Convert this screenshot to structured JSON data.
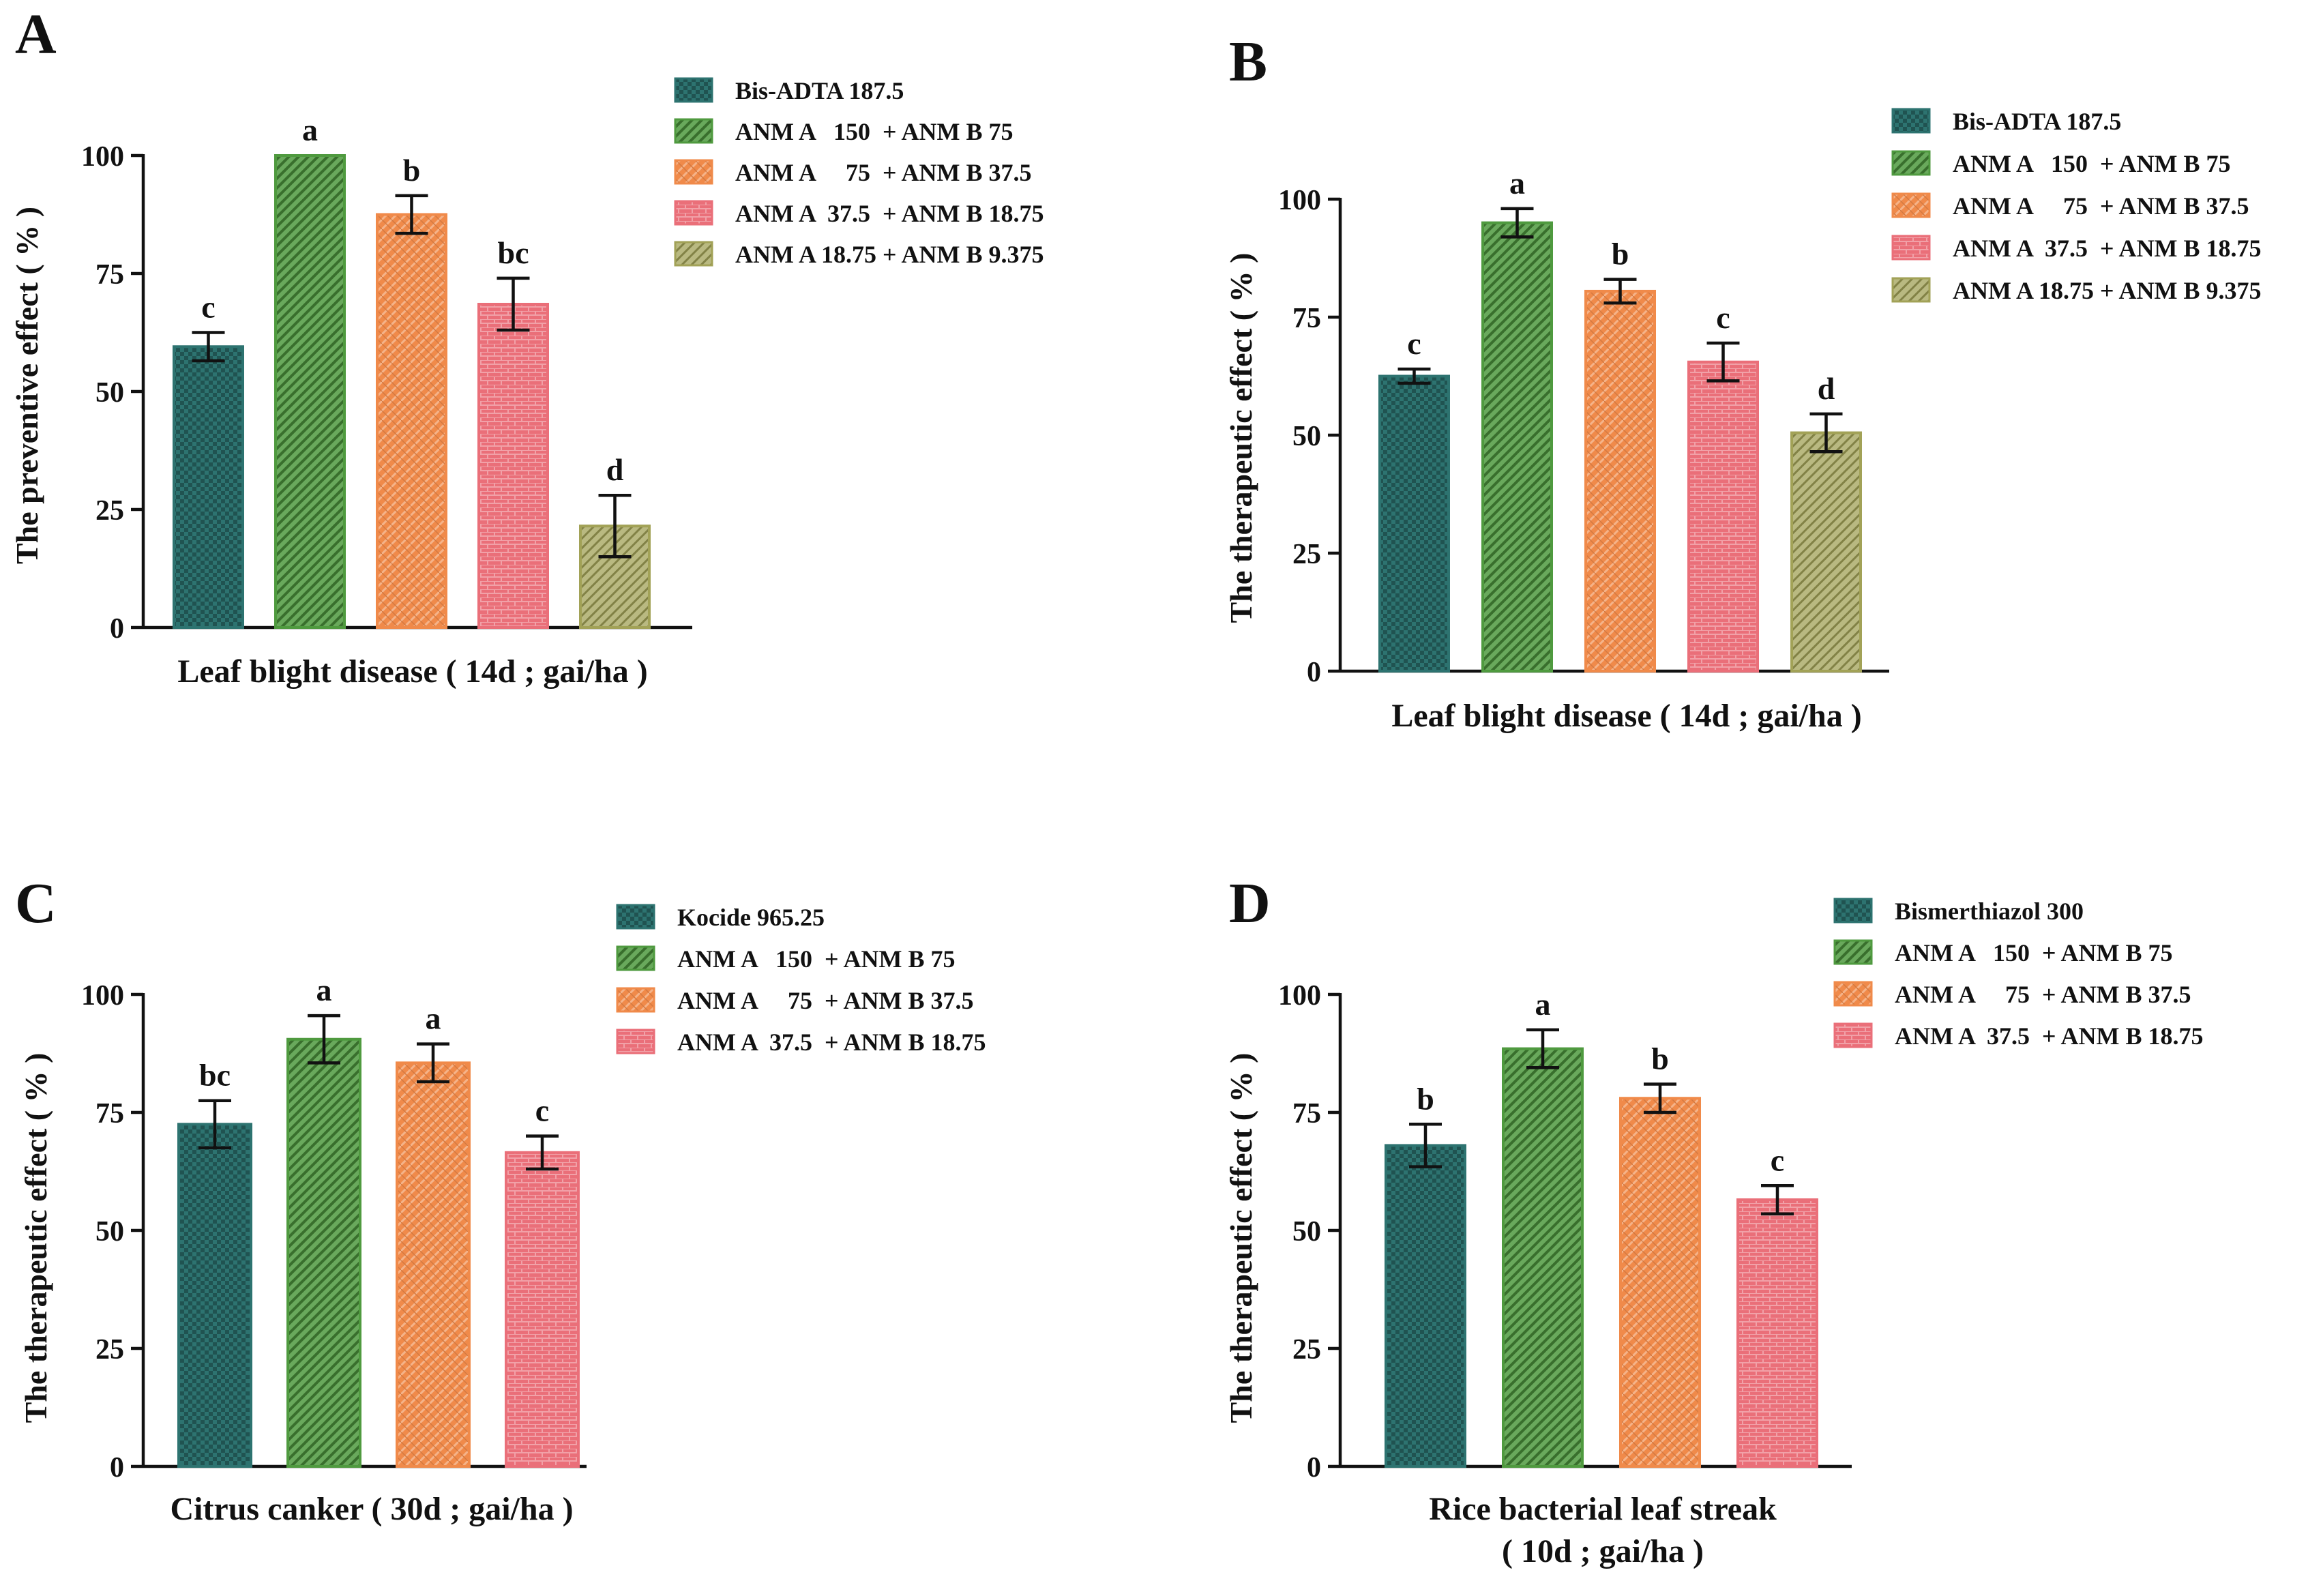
{
  "colors": {
    "teal": "#2d7370",
    "green": "#4f9a3f",
    "orange": "#f08a4a",
    "pink": "#ea6f79",
    "olive": "#a2a257",
    "axis": "#111111"
  },
  "chart_data": [
    {
      "panel": "A",
      "type": "bar",
      "ylabel": "The preventive  effect ( % )",
      "xlabel": [
        "Leaf blight disease ( 14d ; gai/ha )"
      ],
      "ylim": [
        0,
        100
      ],
      "yticks": [
        "0",
        "25",
        "50",
        "75",
        "100"
      ],
      "series": [
        {
          "name": "Bis-ADTA 187.5",
          "color": "teal",
          "pattern": "checker",
          "value": 59.5,
          "error": 3,
          "letter": "c"
        },
        {
          "name": "ANM A   150  + ANM B 75",
          "color": "green",
          "pattern": "diag",
          "value": 100,
          "error": 0,
          "letter": "a"
        },
        {
          "name": "ANM A     75  + ANM B 37.5",
          "color": "orange",
          "pattern": "cross",
          "value": 87.5,
          "error": 4,
          "letter": "b"
        },
        {
          "name": "ANM A  37.5  + ANM B 18.75",
          "color": "pink",
          "pattern": "brick",
          "value": 68.5,
          "error": 5.5,
          "letter": "bc"
        },
        {
          "name": "ANM A 18.75 + ANM B 9.375",
          "color": "olive",
          "pattern": "diag2",
          "value": 21.5,
          "error": 6.5,
          "letter": "d"
        }
      ]
    },
    {
      "panel": "B",
      "type": "bar",
      "ylabel": "The therapeutic  effect ( % )",
      "xlabel": [
        "Leaf blight disease ( 14d ; gai/ha )"
      ],
      "ylim": [
        0,
        100
      ],
      "yticks": [
        "0",
        "25",
        "50",
        "75",
        "100"
      ],
      "series": [
        {
          "name": "Bis-ADTA 187.5",
          "color": "teal",
          "pattern": "checker",
          "value": 62.5,
          "error": 1.5,
          "letter": "c"
        },
        {
          "name": "ANM A   150  + ANM B 75",
          "color": "green",
          "pattern": "diag",
          "value": 95,
          "error": 3,
          "letter": "a"
        },
        {
          "name": "ANM A     75  + ANM B 37.5",
          "color": "orange",
          "pattern": "cross",
          "value": 80.5,
          "error": 2.5,
          "letter": "b"
        },
        {
          "name": "ANM A  37.5  + ANM B 18.75",
          "color": "pink",
          "pattern": "brick",
          "value": 65.5,
          "error": 4,
          "letter": "c"
        },
        {
          "name": "ANM A 18.75 + ANM B 9.375",
          "color": "olive",
          "pattern": "diag2",
          "value": 50.5,
          "error": 4,
          "letter": "d"
        }
      ]
    },
    {
      "panel": "C",
      "type": "bar",
      "ylabel": "The therapeutic  effect ( % )",
      "xlabel": [
        "Citrus canker ( 30d ; gai/ha )"
      ],
      "ylim": [
        0,
        100
      ],
      "yticks": [
        "0",
        "25",
        "50",
        "75",
        "100"
      ],
      "series": [
        {
          "name": "Kocide 965.25",
          "color": "teal",
          "pattern": "checker",
          "value": 72.5,
          "error": 5,
          "letter": "bc"
        },
        {
          "name": "ANM A   150  + ANM B 75",
          "color": "green",
          "pattern": "diag",
          "value": 90.5,
          "error": 5,
          "letter": "a"
        },
        {
          "name": "ANM A     75  + ANM B 37.5",
          "color": "orange",
          "pattern": "cross",
          "value": 85.5,
          "error": 4,
          "letter": "a"
        },
        {
          "name": "ANM A  37.5  + ANM B 18.75",
          "color": "pink",
          "pattern": "brick",
          "value": 66.5,
          "error": 3.5,
          "letter": "c"
        }
      ]
    },
    {
      "panel": "D",
      "type": "bar",
      "ylabel": "The therapeutic  effect ( % )",
      "xlabel": [
        "Rice bacterial leaf streak",
        "( 10d ; gai/ha )"
      ],
      "ylim": [
        0,
        100
      ],
      "yticks": [
        "0",
        "25",
        "50",
        "75",
        "100"
      ],
      "series": [
        {
          "name": "Bismerthiazol 300",
          "color": "teal",
          "pattern": "checker",
          "value": 68,
          "error": 4.5,
          "letter": "b"
        },
        {
          "name": "ANM A   150  + ANM B 75",
          "color": "green",
          "pattern": "diag",
          "value": 88.5,
          "error": 4,
          "letter": "a"
        },
        {
          "name": "ANM A     75  + ANM B 37.5",
          "color": "orange",
          "pattern": "cross",
          "value": 78,
          "error": 3,
          "letter": "b"
        },
        {
          "name": "ANM A  37.5  + ANM B 18.75",
          "color": "pink",
          "pattern": "brick",
          "value": 56.5,
          "error": 3,
          "letter": "c"
        }
      ]
    }
  ]
}
